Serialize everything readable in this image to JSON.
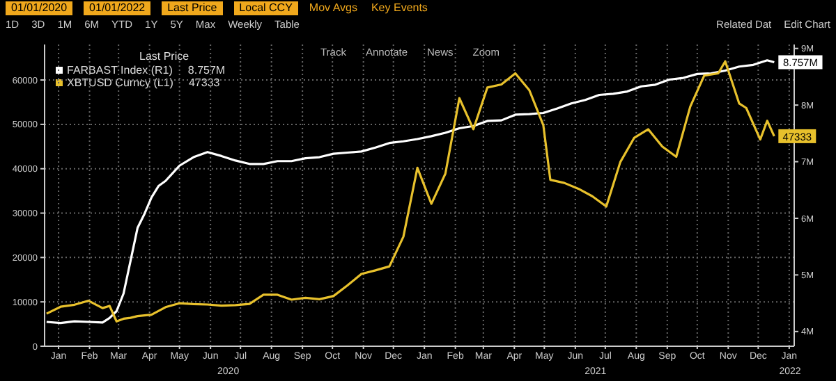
{
  "chart_data": {
    "type": "line",
    "legend_title": "Last Price",
    "legend": "top left",
    "grid": true,
    "marker": "none",
    "line_style": "solid",
    "ylim": [
      0,
      68000
    ],
    "yticks": [
      0,
      10000,
      20000,
      30000,
      40000,
      50000,
      60000
    ],
    "y2lim": [
      3.74,
      9.07
    ],
    "y2ticks": [
      {
        "value": 4,
        "label": "4M"
      },
      {
        "value": 5,
        "label": "5M"
      },
      {
        "value": 6,
        "label": "6M"
      },
      {
        "value": 7,
        "label": "7M"
      },
      {
        "value": 8,
        "label": "8M"
      },
      {
        "value": 9,
        "label": "9M"
      }
    ],
    "xlim": [
      "2020-01-01",
      "2022-01-20"
    ],
    "xticks": [
      {
        "value": "2020-01-15",
        "label": "Jan"
      },
      {
        "value": "2020-02-15",
        "label": "Feb"
      },
      {
        "value": "2020-03-15",
        "label": "Mar"
      },
      {
        "value": "2020-04-15",
        "label": "Apr"
      },
      {
        "value": "2020-05-15",
        "label": "May"
      },
      {
        "value": "2020-06-15",
        "label": "Jun"
      },
      {
        "value": "2020-07-15",
        "label": "Jul"
      },
      {
        "value": "2020-08-15",
        "label": "Aug"
      },
      {
        "value": "2020-09-15",
        "label": "Sep"
      },
      {
        "value": "2020-10-15",
        "label": "Oct"
      },
      {
        "value": "2020-11-15",
        "label": "Nov"
      },
      {
        "value": "2020-12-15",
        "label": "Dec"
      },
      {
        "value": "2021-01-15",
        "label": "Jan"
      },
      {
        "value": "2021-02-15",
        "label": "Feb"
      },
      {
        "value": "2021-03-15",
        "label": "Mar"
      },
      {
        "value": "2021-04-15",
        "label": "Apr"
      },
      {
        "value": "2021-05-15",
        "label": "May"
      },
      {
        "value": "2021-06-15",
        "label": "Jun"
      },
      {
        "value": "2021-07-15",
        "label": "Jul"
      },
      {
        "value": "2021-08-15",
        "label": "Aug"
      },
      {
        "value": "2021-09-15",
        "label": "Sep"
      },
      {
        "value": "2021-10-15",
        "label": "Oct"
      },
      {
        "value": "2021-11-15",
        "label": "Nov"
      },
      {
        "value": "2021-12-15",
        "label": "Dec"
      },
      {
        "value": "2022-01-15",
        "label": "Jan"
      }
    ],
    "annotations": [
      "01/01/2020",
      "01/01/2022",
      "Last Price",
      "Local CCY",
      "Mov Avgs",
      "Key Events",
      "1D",
      "3D",
      "1M",
      "6M",
      "YTD",
      "1Y",
      "5Y",
      "Max",
      "Weekly",
      "Table",
      "Related Dat",
      "Edit Chart",
      "Track",
      "Annotate",
      "News",
      "Zoom",
      "2020",
      "2021",
      "2022"
    ],
    "series": [
      {
        "name": "FARBAST Index (R1)",
        "color": "#ffffff",
        "axis": "y2",
        "x": [
          "2020-01-03",
          "2020-01-17",
          "2020-01-31",
          "2020-02-14",
          "2020-02-28",
          "2020-03-06",
          "2020-03-13",
          "2020-03-20",
          "2020-03-27",
          "2020-04-03",
          "2020-04-10",
          "2020-04-17",
          "2020-04-24",
          "2020-05-01",
          "2020-05-15",
          "2020-05-29",
          "2020-06-12",
          "2020-06-26",
          "2020-07-10",
          "2020-07-24",
          "2020-08-07",
          "2020-08-21",
          "2020-09-04",
          "2020-09-18",
          "2020-10-02",
          "2020-10-16",
          "2020-10-30",
          "2020-11-13",
          "2020-11-27",
          "2020-12-11",
          "2020-12-25",
          "2021-01-08",
          "2021-01-22",
          "2021-02-05",
          "2021-02-19",
          "2021-03-05",
          "2021-03-19",
          "2021-04-02",
          "2021-04-16",
          "2021-04-30",
          "2021-05-14",
          "2021-05-28",
          "2021-06-11",
          "2021-06-25",
          "2021-07-09",
          "2021-07-23",
          "2021-08-06",
          "2021-08-20",
          "2021-09-03",
          "2021-09-17",
          "2021-10-01",
          "2021-10-15",
          "2021-10-29",
          "2021-11-12",
          "2021-11-26",
          "2021-12-10",
          "2021-12-24",
          "2021-12-31"
        ],
        "values": [
          4.17,
          4.15,
          4.18,
          4.17,
          4.16,
          4.24,
          4.36,
          4.67,
          5.25,
          5.83,
          6.08,
          6.37,
          6.57,
          6.66,
          6.93,
          7.08,
          7.17,
          7.1,
          7.02,
          6.96,
          6.96,
          7.01,
          7.01,
          7.06,
          7.08,
          7.14,
          7.16,
          7.18,
          7.25,
          7.33,
          7.36,
          7.4,
          7.45,
          7.51,
          7.59,
          7.63,
          7.72,
          7.73,
          7.83,
          7.84,
          7.86,
          7.94,
          8.03,
          8.09,
          8.18,
          8.2,
          8.24,
          8.33,
          8.36,
          8.45,
          8.48,
          8.55,
          8.56,
          8.61,
          8.68,
          8.71,
          8.79,
          8.757
        ],
        "value_labels": [
          null,
          null,
          null,
          null,
          null,
          null,
          null,
          null,
          null,
          null,
          null,
          null,
          null,
          null,
          null,
          null,
          null,
          null,
          null,
          null,
          null,
          null,
          null,
          null,
          null,
          null,
          null,
          null,
          null,
          null,
          null,
          null,
          null,
          null,
          null,
          null,
          null,
          null,
          null,
          null,
          null,
          null,
          null,
          null,
          null,
          null,
          null,
          null,
          null,
          null,
          null,
          null,
          null,
          null,
          null,
          null,
          null,
          "8.757M"
        ]
      },
      {
        "name": "XBTUSD Curncy (L1)",
        "color": "#e8c12c",
        "x": [
          "2020-01-03",
          "2020-01-17",
          "2020-01-31",
          "2020-02-14",
          "2020-02-28",
          "2020-03-06",
          "2020-03-13",
          "2020-03-20",
          "2020-03-27",
          "2020-04-03",
          "2020-04-17",
          "2020-05-01",
          "2020-05-15",
          "2020-05-29",
          "2020-06-12",
          "2020-06-26",
          "2020-07-10",
          "2020-07-24",
          "2020-08-07",
          "2020-08-21",
          "2020-09-04",
          "2020-09-18",
          "2020-10-02",
          "2020-10-16",
          "2020-10-30",
          "2020-11-13",
          "2020-11-27",
          "2020-12-11",
          "2020-12-25",
          "2021-01-08",
          "2021-01-22",
          "2021-02-05",
          "2021-02-19",
          "2021-03-05",
          "2021-03-19",
          "2021-04-02",
          "2021-04-16",
          "2021-04-30",
          "2021-05-14",
          "2021-05-21",
          "2021-06-04",
          "2021-06-18",
          "2021-07-02",
          "2021-07-16",
          "2021-07-30",
          "2021-08-13",
          "2021-08-27",
          "2021-09-10",
          "2021-09-24",
          "2021-10-08",
          "2021-10-22",
          "2021-11-05",
          "2021-11-12",
          "2021-11-26",
          "2021-12-03",
          "2021-12-17",
          "2021-12-24",
          "2021-12-31"
        ],
        "values": [
          7350,
          8900,
          9350,
          10250,
          8600,
          9100,
          5600,
          6200,
          6400,
          6800,
          7100,
          8800,
          9700,
          9500,
          9400,
          9150,
          9250,
          9550,
          11600,
          11600,
          10500,
          10900,
          10600,
          11300,
          13700,
          16300,
          17100,
          18000,
          24700,
          40200,
          32100,
          38900,
          55900,
          48900,
          58300,
          59000,
          61500,
          57700,
          49800,
          37500,
          36800,
          35500,
          33800,
          31500,
          41500,
          47000,
          48900,
          45000,
          42700,
          54000,
          61000,
          61500,
          64200,
          54700,
          53700,
          46600,
          50800,
          47333
        ],
        "value_labels": [
          null,
          null,
          null,
          null,
          null,
          null,
          null,
          null,
          null,
          null,
          null,
          null,
          null,
          null,
          null,
          null,
          null,
          null,
          null,
          null,
          null,
          null,
          null,
          null,
          null,
          null,
          null,
          null,
          null,
          null,
          null,
          null,
          null,
          null,
          null,
          null,
          null,
          null,
          null,
          null,
          null,
          null,
          null,
          null,
          null,
          null,
          null,
          null,
          null,
          null,
          null,
          null,
          null,
          null,
          null,
          null,
          null,
          "47333"
        ]
      }
    ]
  }
}
